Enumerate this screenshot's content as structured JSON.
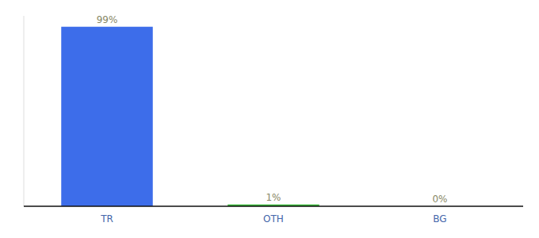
{
  "chart_data": {
    "type": "bar",
    "categories": [
      "TR",
      "OTH",
      "BG"
    ],
    "values": [
      99,
      1,
      0
    ],
    "value_labels": [
      "99%",
      "1%",
      "0%"
    ],
    "colors": [
      "#3d6dea",
      "#3ab83a",
      "#3d6dea"
    ],
    "ylim": [
      0,
      105
    ],
    "data_labels": true,
    "tick_labels": "x",
    "grid": false
  }
}
